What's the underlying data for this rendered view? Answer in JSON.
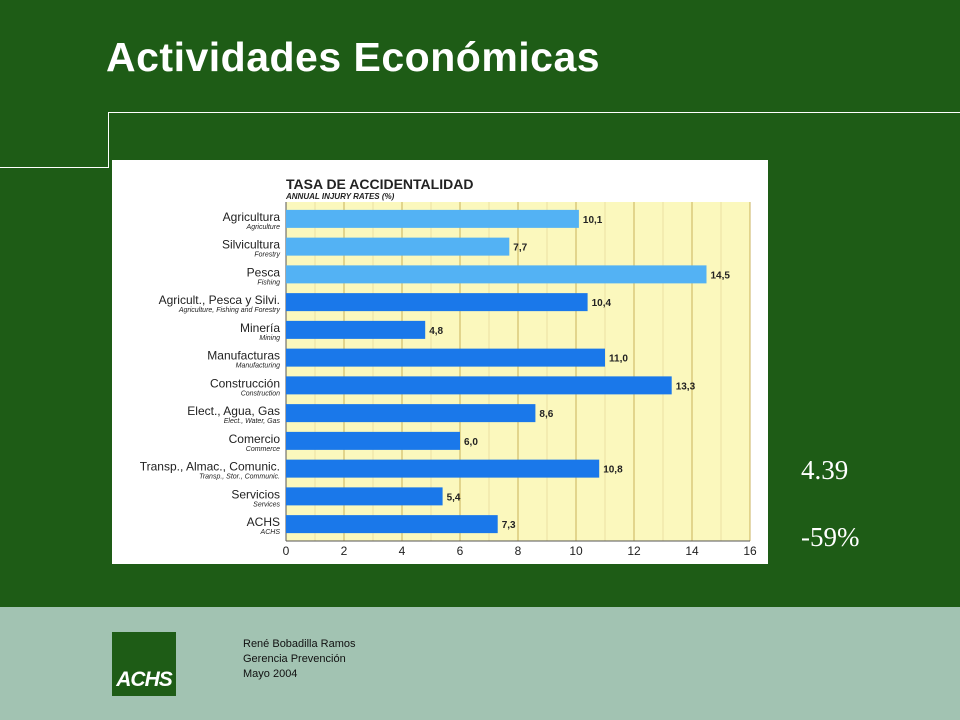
{
  "slide": {
    "title": "Actividades Económicas",
    "stat_primary": "4.39",
    "stat_secondary": "-59%"
  },
  "footer": {
    "author": "René Bobadilla Ramos",
    "department": "Gerencia Prevención",
    "date": "Mayo 2004",
    "logo_text": "ACHS"
  },
  "colors": {
    "background": "#1e5c16",
    "footer": "#a2c3b2",
    "plot_bg": "#fbf8bd",
    "bar_light": "#53b2f4",
    "bar_dark": "#1a78ea"
  },
  "chart_data": {
    "type": "bar",
    "orientation": "horizontal",
    "title": "TASA DE ACCIDENTALIDAD",
    "subtitle": "ANNUAL INJURY RATES (%)",
    "xlim": [
      0,
      16
    ],
    "xticks": [
      0,
      2,
      4,
      6,
      8,
      10,
      12,
      14,
      16
    ],
    "grid": true,
    "categories": [
      {
        "label": "Agricultura",
        "sublabel": "Agriculture",
        "value": 10.1,
        "value_label": "10,1",
        "shade": "light"
      },
      {
        "label": "Silvicultura",
        "sublabel": "Forestry",
        "value": 7.7,
        "value_label": "7,7",
        "shade": "light"
      },
      {
        "label": "Pesca",
        "sublabel": "Fishing",
        "value": 14.5,
        "value_label": "14,5",
        "shade": "light"
      },
      {
        "label": "Agricult., Pesca y Silvi.",
        "sublabel": "Agriculture, Fishing and Forestry",
        "value": 10.4,
        "value_label": "10,4",
        "shade": "dark"
      },
      {
        "label": "Minería",
        "sublabel": "Mining",
        "value": 4.8,
        "value_label": "4,8",
        "shade": "dark"
      },
      {
        "label": "Manufacturas",
        "sublabel": "Manufacturing",
        "value": 11.0,
        "value_label": "11,0",
        "shade": "dark"
      },
      {
        "label": "Construcción",
        "sublabel": "Construction",
        "value": 13.3,
        "value_label": "13,3",
        "shade": "dark"
      },
      {
        "label": "Elect., Agua, Gas",
        "sublabel": "Elect., Water, Gas",
        "value": 8.6,
        "value_label": "8,6",
        "shade": "dark"
      },
      {
        "label": "Comercio",
        "sublabel": "Commerce",
        "value": 6.0,
        "value_label": "6,0",
        "shade": "dark"
      },
      {
        "label": "Transp., Almac., Comunic.",
        "sublabel": "Transp., Stor., Communic.",
        "value": 10.8,
        "value_label": "10,8",
        "shade": "dark"
      },
      {
        "label": "Servicios",
        "sublabel": "Services",
        "value": 5.4,
        "value_label": "5,4",
        "shade": "dark"
      },
      {
        "label": "ACHS",
        "sublabel": "ACHS",
        "value": 7.3,
        "value_label": "7,3",
        "shade": "dark"
      }
    ]
  }
}
